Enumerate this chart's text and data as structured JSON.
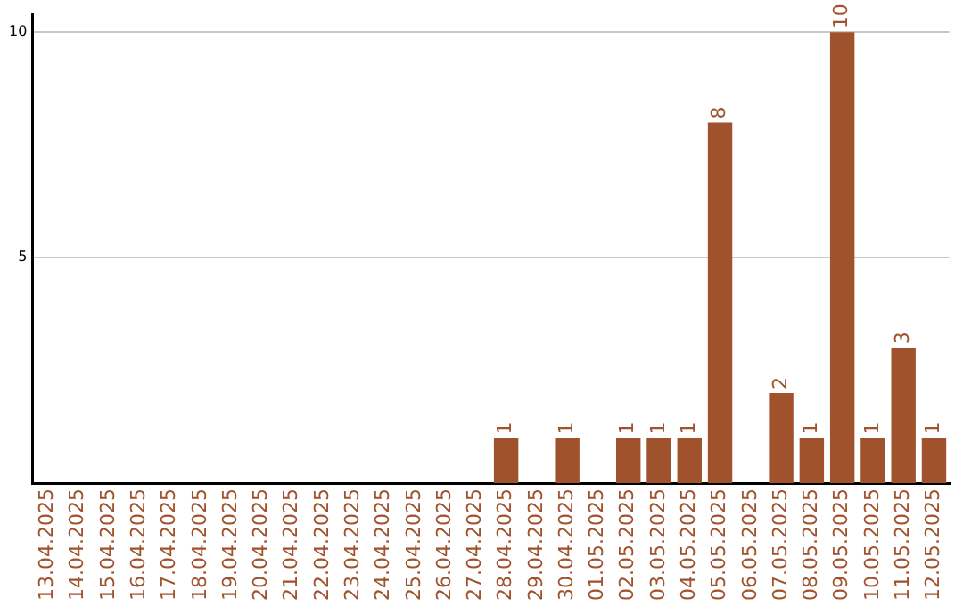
{
  "chart_data": {
    "type": "bar",
    "categories": [
      "13.04.2025",
      "14.04.2025",
      "15.04.2025",
      "16.04.2025",
      "17.04.2025",
      "18.04.2025",
      "19.04.2025",
      "20.04.2025",
      "21.04.2025",
      "22.04.2025",
      "23.04.2025",
      "24.04.2025",
      "25.04.2025",
      "26.04.2025",
      "27.04.2025",
      "28.04.2025",
      "29.04.2025",
      "30.04.2025",
      "01.05.2025",
      "02.05.2025",
      "03.05.2025",
      "04.05.2025",
      "05.05.2025",
      "06.05.2025",
      "07.05.2025",
      "08.05.2025",
      "09.05.2025",
      "10.05.2025",
      "11.05.2025",
      "12.05.2025"
    ],
    "values": [
      0,
      0,
      0,
      0,
      0,
      0,
      0,
      0,
      0,
      0,
      0,
      0,
      0,
      0,
      0,
      1,
      0,
      1,
      0,
      1,
      1,
      1,
      8,
      0,
      2,
      1,
      10,
      1,
      3,
      1
    ],
    "value_labels": [
      null,
      null,
      null,
      null,
      null,
      null,
      null,
      null,
      null,
      null,
      null,
      null,
      null,
      null,
      null,
      "1",
      null,
      "1",
      null,
      "1",
      "1",
      "1",
      "8",
      null,
      "2",
      "1",
      "10",
      "1",
      "3",
      "1"
    ],
    "color": "#a0522d",
    "ylim": [
      0,
      10.4
    ],
    "yticks": [
      5,
      10
    ],
    "grid": "y"
  }
}
